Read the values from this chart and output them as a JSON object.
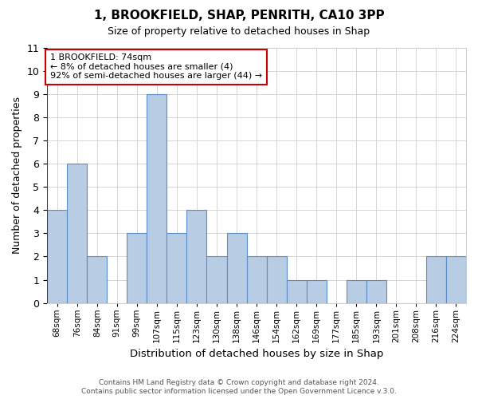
{
  "title": "1, BROOKFIELD, SHAP, PENRITH, CA10 3PP",
  "subtitle": "Size of property relative to detached houses in Shap",
  "xlabel": "Distribution of detached houses by size in Shap",
  "ylabel": "Number of detached properties",
  "footnote1": "Contains HM Land Registry data © Crown copyright and database right 2024.",
  "footnote2": "Contains public sector information licensed under the Open Government Licence v.3.0.",
  "bin_labels": [
    "68sqm",
    "76sqm",
    "84sqm",
    "91sqm",
    "99sqm",
    "107sqm",
    "115sqm",
    "123sqm",
    "130sqm",
    "138sqm",
    "146sqm",
    "154sqm",
    "162sqm",
    "169sqm",
    "177sqm",
    "185sqm",
    "193sqm",
    "201sqm",
    "208sqm",
    "216sqm",
    "224sqm"
  ],
  "bar_heights": [
    4,
    6,
    2,
    0,
    3,
    9,
    3,
    4,
    2,
    3,
    2,
    2,
    1,
    1,
    0,
    1,
    1,
    0,
    0,
    2,
    2
  ],
  "ylim": [
    0,
    11
  ],
  "yticks": [
    0,
    1,
    2,
    3,
    4,
    5,
    6,
    7,
    8,
    9,
    10,
    11
  ],
  "bar_color": "#b8cce4",
  "bar_edge_color": "#5b8dc8",
  "highlight_line_color": "#cc0000",
  "annotation_box_text": "1 BROOKFIELD: 74sqm\n← 8% of detached houses are smaller (4)\n92% of semi-detached houses are larger (44) →",
  "annotation_box_color": "#ffffff",
  "annotation_box_edge_color": "#cc0000",
  "background_color": "#ffffff",
  "grid_color": "#d0d0d0"
}
